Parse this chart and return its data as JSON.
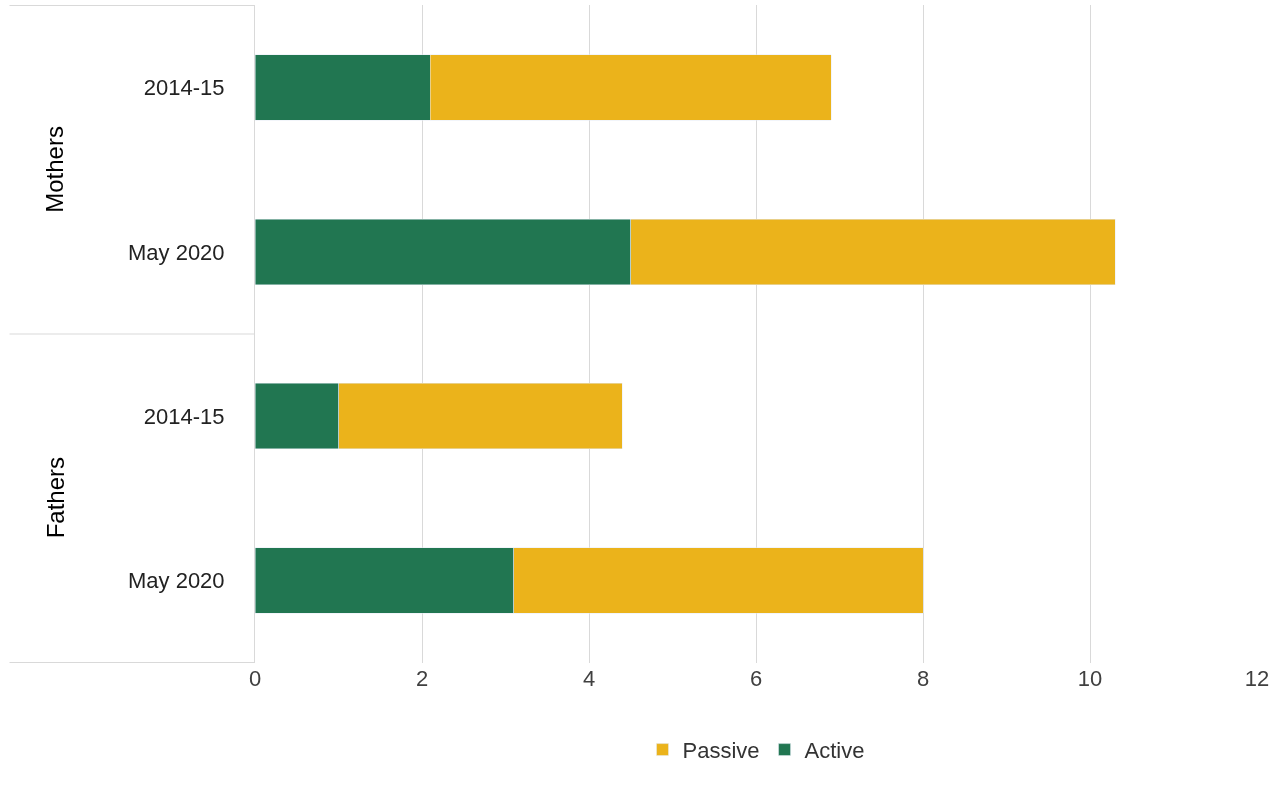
{
  "chart_data": {
    "type": "bar",
    "orientation": "horizontal",
    "stacked": true,
    "categories": [
      "2014-15",
      "May 2020",
      "2014-15",
      "May 2020"
    ],
    "series": [
      {
        "name": "Active",
        "color": "#217651",
        "values": [
          2.1,
          4.5,
          1.0,
          3.1
        ]
      },
      {
        "name": "Passive",
        "color": "#ebb31b",
        "values": [
          4.8,
          5.8,
          3.4,
          4.9
        ]
      }
    ],
    "annotations": [
      "Mothers",
      "Fathers"
    ],
    "xlim": [
      0,
      12
    ],
    "xticks": [
      0,
      2,
      4,
      6,
      8,
      10,
      12
    ],
    "grid": "x",
    "legend": "bottom"
  }
}
